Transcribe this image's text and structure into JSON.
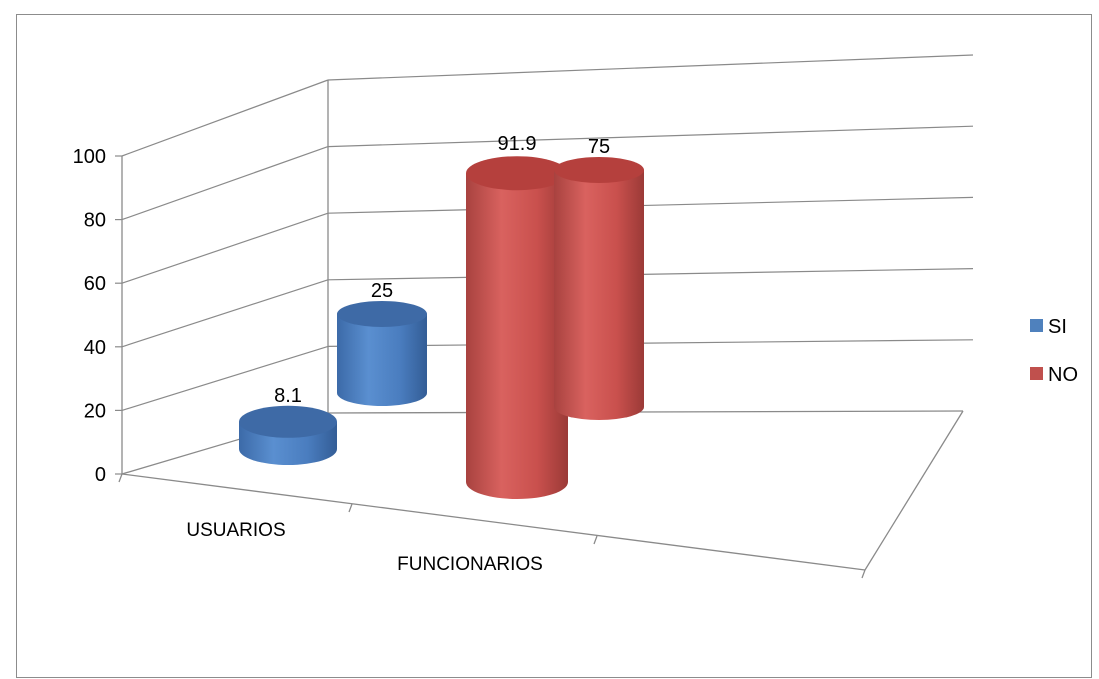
{
  "chart_data": {
    "type": "bar",
    "style": "3d-cylinder",
    "categories": [
      "USUARIOS",
      "FUNCIONARIOS"
    ],
    "series": [
      {
        "name": "SI",
        "values": [
          8.1,
          25
        ],
        "color": "#4f81bd"
      },
      {
        "name": "NO",
        "values": [
          91.9,
          75
        ],
        "color": "#c0504d"
      }
    ],
    "data_labels": [
      [
        "8.1",
        "25"
      ],
      [
        "91.9",
        "75"
      ]
    ],
    "y_ticks": [
      "0",
      "20",
      "40",
      "60",
      "80",
      "100"
    ],
    "ylim": [
      0,
      100
    ],
    "title": "",
    "xlabel": "",
    "ylabel": "",
    "grid": true,
    "legend_position": "right"
  }
}
